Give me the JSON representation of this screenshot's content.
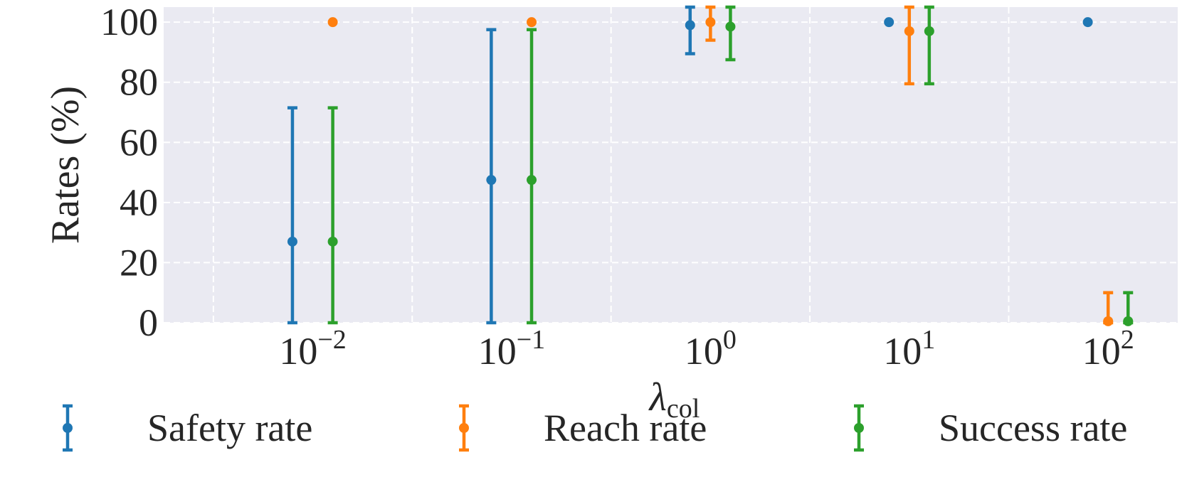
{
  "chart_data": {
    "type": "scatter",
    "ylabel": "Rates (%)",
    "xlabel": {
      "base": "λ",
      "sub": "col"
    },
    "x_scale": "log",
    "xlim_log10": [
      -2.75,
      2.35
    ],
    "ylim": [
      0,
      105
    ],
    "grid": true,
    "legend_position": "bottom",
    "y_ticks": [
      {
        "value": 0,
        "label": "0"
      },
      {
        "value": 20,
        "label": "20"
      },
      {
        "value": 40,
        "label": "40"
      },
      {
        "value": 60,
        "label": "60"
      },
      {
        "value": 80,
        "label": "80"
      },
      {
        "value": 100,
        "label": "100"
      }
    ],
    "x_ticks": [
      {
        "value": 0.01,
        "base": "10",
        "exp": "−2"
      },
      {
        "value": 0.1,
        "base": "10",
        "exp": "−1"
      },
      {
        "value": 1,
        "base": "10",
        "exp": "0"
      },
      {
        "value": 10,
        "base": "10",
        "exp": "1"
      },
      {
        "value": 100,
        "base": "10",
        "exp": "2"
      }
    ],
    "categories": [
      0.01,
      0.1,
      1,
      10,
      100
    ],
    "series": [
      {
        "name": "Safety rate",
        "color": "#1f77b4",
        "x": [
          0.0079,
          0.079,
          0.79,
          7.9,
          79
        ],
        "y": [
          27,
          47.5,
          99,
          100,
          100
        ],
        "yerr_low": [
          0,
          0,
          89.5,
          100,
          100
        ],
        "yerr_high": [
          71.5,
          97.5,
          105,
          100,
          100
        ]
      },
      {
        "name": "Reach rate",
        "color": "#ff7f0e",
        "x": [
          0.0126,
          0.126,
          1,
          10,
          100
        ],
        "y": [
          100,
          100,
          100,
          97,
          0.5
        ],
        "yerr_low": [
          100,
          100,
          94,
          79.5,
          0
        ],
        "yerr_high": [
          100,
          100,
          105,
          105,
          10
        ]
      },
      {
        "name": "Success rate",
        "color": "#2ca02c",
        "x": [
          0.0126,
          0.126,
          1.26,
          12.6,
          126
        ],
        "y": [
          27,
          47.5,
          98.5,
          97,
          0.5
        ],
        "yerr_low": [
          0,
          0,
          87.5,
          79.5,
          0
        ],
        "yerr_high": [
          71.5,
          97.5,
          105,
          105,
          10
        ]
      }
    ]
  }
}
